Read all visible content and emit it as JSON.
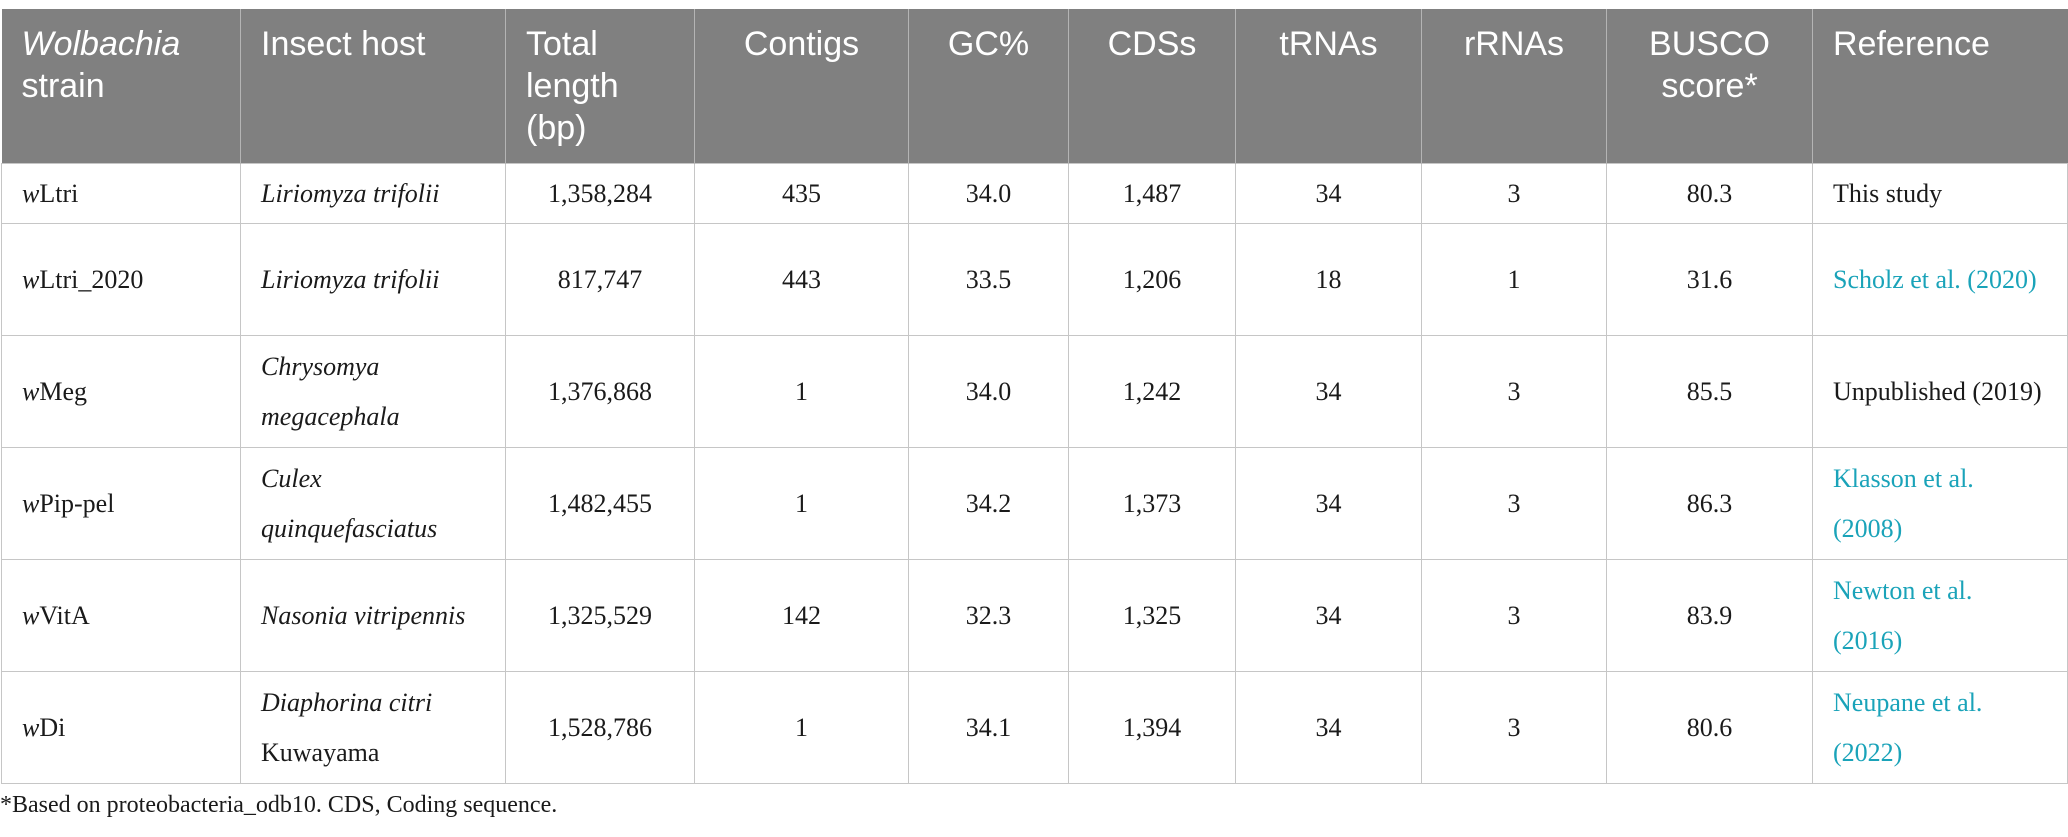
{
  "headers": {
    "strain_italic": "Wolbachia",
    "strain_rest": "strain",
    "host": "Insect host",
    "length": "Total length (bp)",
    "contigs": "Contigs",
    "gc": "GC%",
    "cds": "CDSs",
    "trna": "tRNAs",
    "rrna": "rRNAs",
    "busco": "BUSCO score*",
    "reference": "Reference"
  },
  "rows": [
    {
      "strain_prefix": "w",
      "strain_name": "Ltri",
      "host": "Liriomyza trifolii",
      "length": "1,358,284",
      "contigs": "435",
      "gc": "34.0",
      "cds": "1,487",
      "trna": "34",
      "rrna": "3",
      "busco": "80.3",
      "reference": "This study"
    },
    {
      "strain_prefix": "w",
      "strain_name": "Ltri_2020",
      "host": "Liriomyza trifolii",
      "length": "817,747",
      "contigs": "443",
      "gc": "33.5",
      "cds": "1,206",
      "trna": "18",
      "rrna": "1",
      "busco": "31.6",
      "reference": "Scholz et al. (2020)"
    },
    {
      "strain_prefix": "w",
      "strain_name": "Meg",
      "host": "Chrysomya megacephala",
      "length": "1,376,868",
      "contigs": "1",
      "gc": "34.0",
      "cds": "1,242",
      "trna": "34",
      "rrna": "3",
      "busco": "85.5",
      "reference": "Unpublished (2019)"
    },
    {
      "strain_prefix": "w",
      "strain_name": "Pip-pel",
      "host": "Culex quinquefasciatus",
      "length": "1,482,455",
      "contigs": "1",
      "gc": "34.2",
      "cds": "1,373",
      "trna": "34",
      "rrna": "3",
      "busco": "86.3",
      "reference": "Klasson et al. (2008)"
    },
    {
      "strain_prefix": "w",
      "strain_name": "VitA",
      "host": "Nasonia vitripennis",
      "length": "1,325,529",
      "contigs": "142",
      "gc": "32.3",
      "cds": "1,325",
      "trna": "34",
      "rrna": "3",
      "busco": "83.9",
      "reference": "Newton et al. (2016)"
    },
    {
      "strain_prefix": "w",
      "strain_name": "Di",
      "host": "Diaphorina citri",
      "host_extra": "Kuwayama",
      "length": "1,528,786",
      "contigs": "1",
      "gc": "34.1",
      "cds": "1,394",
      "trna": "34",
      "rrna": "3",
      "busco": "80.6",
      "reference": "Neupane et al. (2022)"
    }
  ],
  "footnote": "*Based on proteobacteria_odb10. CDS, Coding sequence.",
  "colors": {
    "header_bg": "#808080",
    "header_text": "#ffffff",
    "link": "#1aa3b9",
    "border": "#c6c6c6"
  }
}
